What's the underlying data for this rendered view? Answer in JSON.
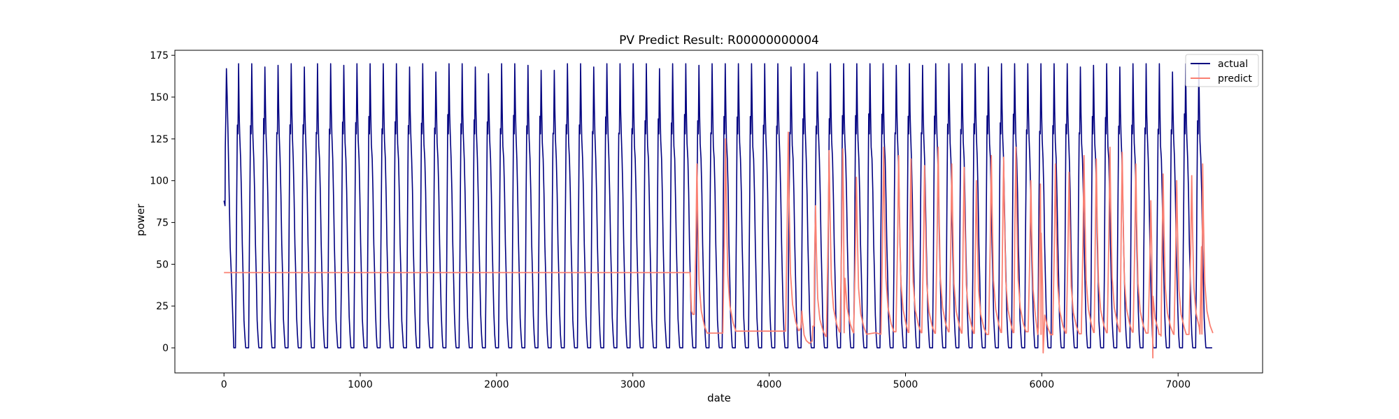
{
  "chart_data": {
    "type": "line",
    "title": "PV Predict Result: R00000000004",
    "xlabel": "date",
    "ylabel": "power",
    "xlim": [
      -360,
      7620
    ],
    "ylim": [
      -15,
      178
    ],
    "xticks": [
      0,
      1000,
      2000,
      3000,
      4000,
      5000,
      6000,
      7000
    ],
    "yticks": [
      0,
      25,
      50,
      75,
      100,
      125,
      150,
      175
    ],
    "grid": false,
    "legend_position": "top-right",
    "series": [
      {
        "name": "actual",
        "color": "#000080",
        "pattern": "periodic daily solar cycle, zero at night",
        "x_start": 0,
        "x_end": 7250,
        "period": 96.5,
        "cycles": 75,
        "day_start_offset": 12,
        "day_length": 76,
        "peak_values": [
          167,
          170,
          170,
          168,
          169,
          170,
          168,
          170,
          170,
          169,
          170,
          170,
          170,
          170,
          168,
          170,
          165,
          170,
          170,
          168,
          164,
          170,
          170,
          169,
          166,
          166,
          170,
          170,
          168,
          170,
          170,
          170,
          170,
          167,
          170,
          170,
          169,
          170,
          170,
          170,
          170,
          170,
          170,
          168,
          170,
          165,
          170,
          170,
          170,
          170,
          170,
          169,
          170,
          169,
          170,
          170,
          170,
          170,
          168,
          170,
          170,
          170,
          170,
          170,
          170,
          168,
          169,
          170,
          168,
          170,
          170,
          170,
          165,
          170,
          170
        ],
        "level_values": [
          140,
          128,
          113,
          90,
          62,
          40,
          16
        ]
      },
      {
        "name": "predict",
        "color": "#fa8072",
        "flat_segments": [
          {
            "x_start": 0,
            "x_end": 3420,
            "value": 45
          },
          {
            "x_start": 3530,
            "x_end": 3630,
            "value": 27
          },
          {
            "x_start": 3680,
            "x_end": 4080,
            "value": 18
          },
          {
            "x_start": 4250,
            "x_end": 4330,
            "value": 13
          },
          {
            "x_start": 4550,
            "x_end": 4780,
            "value": 9
          },
          {
            "x_start": 6860,
            "x_end": 7060,
            "value": 8
          }
        ],
        "peaks": [
          {
            "x": 3470,
            "value": 110
          },
          {
            "x": 3680,
            "value": 125
          },
          {
            "x": 4140,
            "value": 129
          },
          {
            "x": 4240,
            "value": 22
          },
          {
            "x": 4340,
            "value": 85
          },
          {
            "x": 4440,
            "value": 118
          },
          {
            "x": 4540,
            "value": 119
          },
          {
            "x": 4640,
            "value": 102
          },
          {
            "x": 4840,
            "value": 120
          },
          {
            "x": 4950,
            "value": 115
          },
          {
            "x": 5040,
            "value": 113
          },
          {
            "x": 5140,
            "value": 109
          },
          {
            "x": 5240,
            "value": 120
          },
          {
            "x": 5340,
            "value": 110
          },
          {
            "x": 5430,
            "value": 108
          },
          {
            "x": 5520,
            "value": 100
          },
          {
            "x": 5630,
            "value": 115
          },
          {
            "x": 5720,
            "value": 114
          },
          {
            "x": 5810,
            "value": 120
          },
          {
            "x": 5920,
            "value": 100
          },
          {
            "x": 5990,
            "value": 98
          },
          {
            "x": 6100,
            "value": 110
          },
          {
            "x": 6200,
            "value": 105
          },
          {
            "x": 6310,
            "value": 115
          },
          {
            "x": 6400,
            "value": 113
          },
          {
            "x": 6500,
            "value": 120
          },
          {
            "x": 6590,
            "value": 117
          },
          {
            "x": 6690,
            "value": 110
          },
          {
            "x": 6800,
            "value": 88
          },
          {
            "x": 6890,
            "value": 104
          },
          {
            "x": 6990,
            "value": 100
          },
          {
            "x": 7100,
            "value": 103
          },
          {
            "x": 7180,
            "value": 110
          }
        ],
        "troughs": [
          {
            "x": 6010,
            "value": -3
          },
          {
            "x": 6815,
            "value": -6
          },
          {
            "x": 7250,
            "value": 10
          }
        ]
      }
    ]
  }
}
